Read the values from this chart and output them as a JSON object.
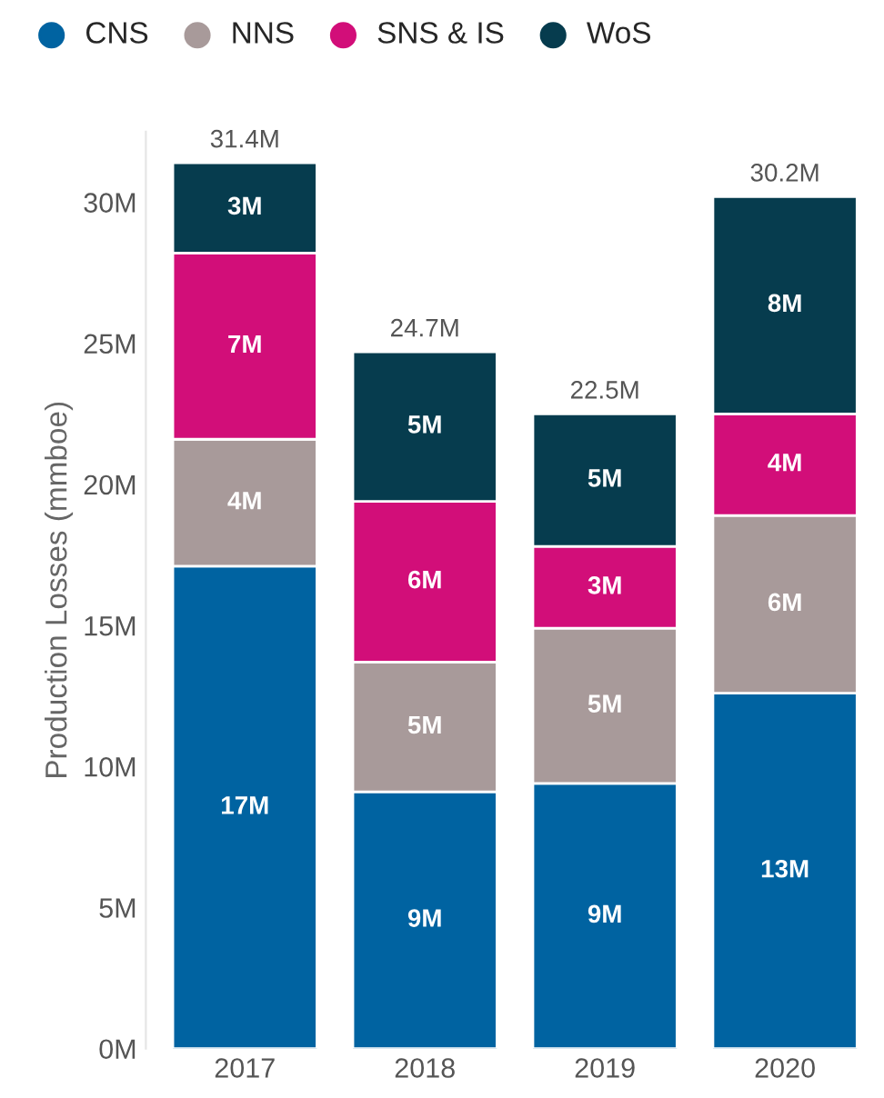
{
  "chart_data": {
    "type": "bar",
    "stacked": true,
    "ylabel": "Production Losses (mmboe)",
    "categories": [
      "2017",
      "2018",
      "2019",
      "2020"
    ],
    "series": [
      {
        "name": "CNS",
        "color": "#0063a1",
        "values": [
          17.1,
          9.1,
          9.4,
          12.6
        ],
        "value_labels": [
          "17M",
          "9M",
          "9M",
          "13M"
        ]
      },
      {
        "name": "NNS",
        "color": "#a89a9a",
        "values": [
          4.5,
          4.6,
          5.5,
          6.3
        ],
        "value_labels": [
          "4M",
          "5M",
          "5M",
          "6M"
        ]
      },
      {
        "name": "SNS & IS",
        "color": "#d20e79",
        "values": [
          6.6,
          5.7,
          2.9,
          3.6
        ],
        "value_labels": [
          "7M",
          "6M",
          "3M",
          "4M"
        ]
      },
      {
        "name": "WoS",
        "color": "#063c4e",
        "values": [
          3.2,
          5.3,
          4.7,
          7.7
        ],
        "value_labels": [
          "3M",
          "5M",
          "5M",
          "8M"
        ]
      }
    ],
    "ylim": [
      0,
      32.5
    ],
    "totals": [
      "31.4M",
      "24.7M",
      "22.5M",
      "30.2M"
    ],
    "yticks": [
      {
        "value": 0,
        "label": "0M"
      },
      {
        "value": 5,
        "label": "5M"
      },
      {
        "value": 10,
        "label": "10M"
      },
      {
        "value": 15,
        "label": "15M"
      },
      {
        "value": 20,
        "label": "20M"
      },
      {
        "value": 25,
        "label": "25M"
      },
      {
        "value": 30,
        "label": "30M"
      }
    ],
    "legend": "top left",
    "grid": false,
    "marker": "circle"
  }
}
